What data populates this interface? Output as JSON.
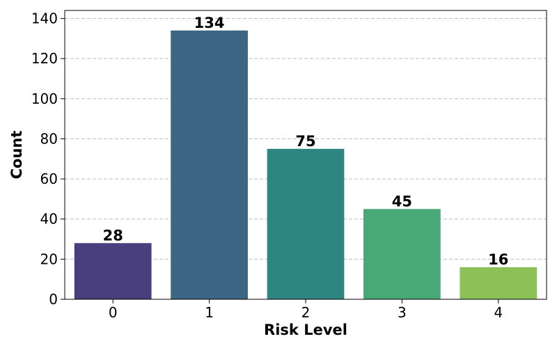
{
  "chart_data": {
    "type": "bar",
    "categories": [
      "0",
      "1",
      "2",
      "3",
      "4"
    ],
    "values": [
      28,
      134,
      75,
      45,
      16
    ],
    "data_labels": [
      "28",
      "134",
      "75",
      "45",
      "16"
    ],
    "colors": [
      "#4a3f7e",
      "#3d6685",
      "#2f8580",
      "#48a878",
      "#8bc157"
    ],
    "xlabel": "Risk Level",
    "ylabel": "Count",
    "ylim": [
      0,
      144
    ],
    "yticks": [
      0,
      20,
      40,
      60,
      80,
      100,
      120,
      140
    ],
    "ytick_labels": [
      "0",
      "20",
      "40",
      "60",
      "80",
      "100",
      "120",
      "140"
    ],
    "grid": "y-dashed",
    "legend": "none"
  }
}
